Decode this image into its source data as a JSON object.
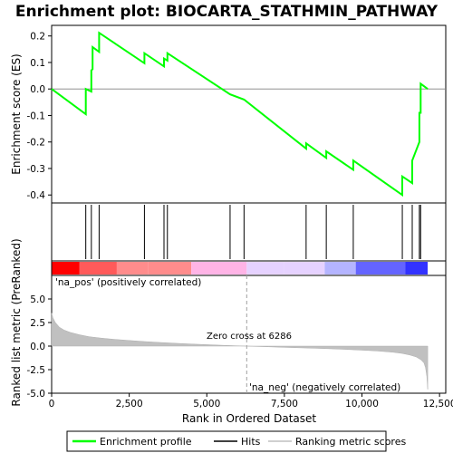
{
  "chart_data": [
    {
      "type": "line",
      "title": "Enrichment plot: BIOCARTA_STATHMIN_PATHWAY",
      "ylabel": "Enrichment score (ES)",
      "ylim": [
        -0.43,
        0.24
      ],
      "yticks": [
        0.2,
        0.1,
        0.0,
        -0.1,
        -0.2,
        -0.3,
        -0.4
      ],
      "yticklabels": [
        "0.2",
        "0.1",
        "0.0",
        "-0.1",
        "-0.2",
        "-0.3",
        "-0.4"
      ],
      "xlim": [
        0,
        12700
      ],
      "grid": false,
      "series": [
        {
          "name": "Enrichment profile",
          "color": "#00ff00",
          "x": [
            0,
            1100,
            1100,
            1280,
            1280,
            1320,
            1320,
            1530,
            1530,
            2990,
            2990,
            3620,
            3620,
            3730,
            3730,
            5750,
            6200,
            8200,
            8200,
            8850,
            8850,
            9720,
            9720,
            11300,
            11300,
            11620,
            11620,
            11850,
            11850,
            11890,
            11890,
            12120
          ],
          "y": [
            0.0,
            -0.095,
            0.0,
            -0.01,
            0.07,
            0.075,
            0.158,
            0.14,
            0.212,
            0.097,
            0.135,
            0.085,
            0.115,
            0.107,
            0.135,
            -0.02,
            -0.04,
            -0.225,
            -0.205,
            -0.26,
            -0.235,
            -0.305,
            -0.27,
            -0.4,
            -0.33,
            -0.355,
            -0.27,
            -0.2,
            -0.09,
            -0.09,
            0.02,
            0.0
          ]
        }
      ]
    },
    {
      "type": "hits",
      "series_name": "Hits",
      "hits_x": [
        1100,
        1280,
        1530,
        2990,
        3620,
        3730,
        5750,
        6200,
        8200,
        8850,
        9720,
        11300,
        11620,
        11850,
        11890
      ]
    },
    {
      "type": "area",
      "ylabel": "Ranked list metric (PreRanked)",
      "xlabel": "Rank in Ordered Dataset",
      "xlim": [
        0,
        12700
      ],
      "ylim": [
        -5,
        7.5
      ],
      "xticks": [
        0,
        2500,
        5000,
        7500,
        10000,
        12500
      ],
      "xticklabels": [
        "0",
        "2,500",
        "5,000",
        "7,500",
        "10,000",
        "12,500"
      ],
      "yticks": [
        5.0,
        2.5,
        0.0,
        -2.5,
        -5.0
      ],
      "yticklabels": [
        "5.0",
        "2.5",
        "0.0",
        "-2.5",
        "-5.0"
      ],
      "series": [
        {
          "name": "Ranking metric scores",
          "color": "#c0c0c0",
          "x": [
            0,
            40,
            120,
            250,
            400,
            600,
            900,
            1200,
            1600,
            2000,
            2500,
            3000,
            3500,
            4000,
            4500,
            5000,
            5500,
            6000,
            6286,
            6600,
            7000,
            7500,
            8000,
            8500,
            9000,
            9500,
            10000,
            10500,
            11000,
            11300,
            11550,
            11750,
            11900,
            12000,
            12050,
            12090,
            12120
          ],
          "y": [
            3.5,
            3.0,
            2.5,
            2.0,
            1.7,
            1.45,
            1.2,
            1.0,
            0.85,
            0.72,
            0.6,
            0.48,
            0.38,
            0.3,
            0.22,
            0.15,
            0.09,
            0.03,
            0.0,
            -0.04,
            -0.08,
            -0.13,
            -0.18,
            -0.23,
            -0.29,
            -0.36,
            -0.43,
            -0.52,
            -0.65,
            -0.78,
            -0.95,
            -1.15,
            -1.45,
            -1.8,
            -2.3,
            -3.2,
            -4.6
          ]
        }
      ],
      "annotations": [
        "'na_pos' (positively correlated)",
        "Zero cross at 6286",
        "'na_neg' (negatively correlated)"
      ],
      "zero_cross": 6286
    }
  ],
  "legend": {
    "placement": "bottom",
    "items": [
      {
        "label": "Enrichment profile",
        "color": "#00ff00"
      },
      {
        "label": "Hits",
        "color": "#000000"
      },
      {
        "label": "Ranking metric scores",
        "color": "#c0c0c0"
      }
    ]
  },
  "colors": {
    "pos_annotation": "#cc0000",
    "neg_annotation": "#0000cc",
    "gradient": [
      "#ff0000",
      "#ff5a5a",
      "#ff8c8c",
      "#ffb4e6",
      "#e6d2ff",
      "#b4b4ff",
      "#6464ff",
      "#3232ff",
      "#0000e0"
    ]
  }
}
